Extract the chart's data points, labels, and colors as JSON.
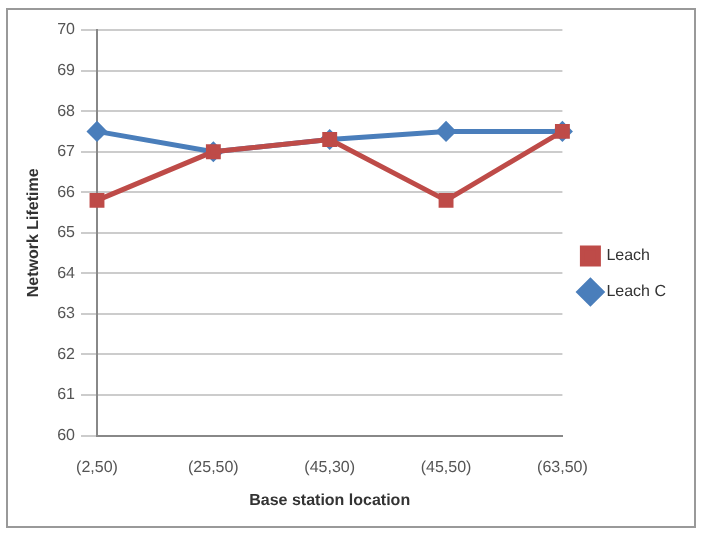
{
  "chart_data": {
    "type": "line",
    "xlabel": "Base station location",
    "ylabel": "Network Lifetime",
    "categories": [
      "(2,50)",
      "(25,50)",
      "(45,30)",
      "(45,50)",
      "(63,50)"
    ],
    "series": [
      {
        "name": "Leach C",
        "color": "#4a7ebb",
        "marker": "diamond",
        "values": [
          67.5,
          67.0,
          67.3,
          67.5,
          67.5
        ]
      },
      {
        "name": "Leach",
        "color": "#be4b48",
        "marker": "square",
        "values": [
          65.8,
          67.0,
          67.3,
          65.8,
          67.5
        ]
      }
    ],
    "ylim": [
      60,
      70
    ],
    "yticks": [
      60,
      61,
      62,
      63,
      64,
      65,
      66,
      67,
      68,
      69,
      70
    ],
    "grid": "y",
    "legend": "right",
    "line_style": "solid"
  }
}
